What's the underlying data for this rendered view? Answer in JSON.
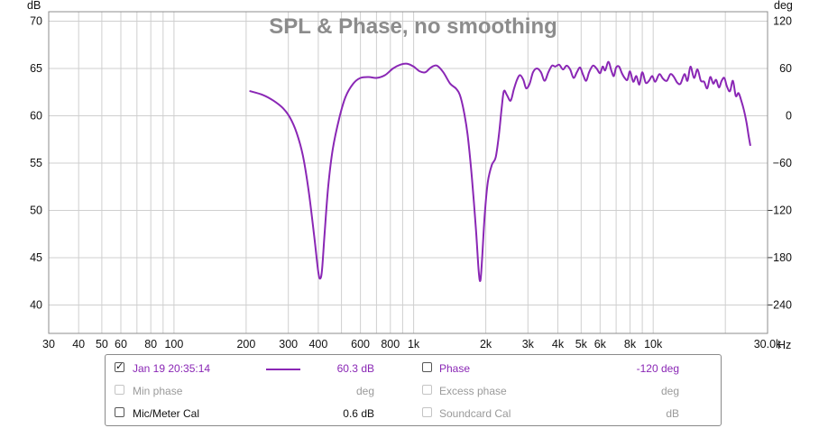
{
  "chart_data": {
    "type": "line",
    "title": "SPL & Phase, no smoothing",
    "y_unit": "dB",
    "y2_unit": "deg",
    "x_unit": "Hz",
    "x_scale": "log",
    "xlim": [
      30,
      30000
    ],
    "ylim": [
      37,
      71
    ],
    "y2lim": [
      -276,
      132
    ],
    "y_ticks": [
      70,
      65,
      60,
      55,
      50,
      45,
      40
    ],
    "y2_ticks": [
      120,
      60,
      0,
      -60,
      -120,
      -180,
      -240
    ],
    "x_tick_labels": [
      {
        "v": 30,
        "t": "30"
      },
      {
        "v": 40,
        "t": "40"
      },
      {
        "v": 50,
        "t": "50"
      },
      {
        "v": 60,
        "t": "60"
      },
      {
        "v": 80,
        "t": "80"
      },
      {
        "v": 100,
        "t": "100"
      },
      {
        "v": 200,
        "t": "200"
      },
      {
        "v": 300,
        "t": "300"
      },
      {
        "v": 400,
        "t": "400"
      },
      {
        "v": 600,
        "t": "600"
      },
      {
        "v": 800,
        "t": "800"
      },
      {
        "v": 1000,
        "t": "1k"
      },
      {
        "v": 2000,
        "t": "2k"
      },
      {
        "v": 3000,
        "t": "3k"
      },
      {
        "v": 4000,
        "t": "4k"
      },
      {
        "v": 5000,
        "t": "5k"
      },
      {
        "v": 6000,
        "t": "6k"
      },
      {
        "v": 8000,
        "t": "8k"
      },
      {
        "v": 10000,
        "t": "10k"
      },
      {
        "v": 30000,
        "t": "30.0k"
      }
    ],
    "grid": true,
    "series": [
      {
        "color": "#8a27b5",
        "points": [
          [
            208,
            62.6
          ],
          [
            235,
            62.2
          ],
          [
            260,
            61.6
          ],
          [
            285,
            60.8
          ],
          [
            305,
            59.8
          ],
          [
            325,
            58.2
          ],
          [
            345,
            55.8
          ],
          [
            365,
            52.0
          ],
          [
            385,
            47.2
          ],
          [
            400,
            43.5
          ],
          [
            408,
            42.8
          ],
          [
            415,
            43.8
          ],
          [
            425,
            47.5
          ],
          [
            440,
            52.5
          ],
          [
            460,
            56.5
          ],
          [
            490,
            59.8
          ],
          [
            520,
            62.0
          ],
          [
            560,
            63.4
          ],
          [
            600,
            64.0
          ],
          [
            650,
            64.1
          ],
          [
            700,
            64.0
          ],
          [
            760,
            64.3
          ],
          [
            820,
            65.0
          ],
          [
            880,
            65.4
          ],
          [
            940,
            65.5
          ],
          [
            1000,
            65.2
          ],
          [
            1060,
            64.7
          ],
          [
            1120,
            64.6
          ],
          [
            1180,
            65.1
          ],
          [
            1250,
            65.3
          ],
          [
            1330,
            64.6
          ],
          [
            1420,
            63.4
          ],
          [
            1500,
            62.9
          ],
          [
            1560,
            62.2
          ],
          [
            1620,
            60.5
          ],
          [
            1680,
            58.0
          ],
          [
            1750,
            53.5
          ],
          [
            1820,
            48.0
          ],
          [
            1870,
            43.5
          ],
          [
            1900,
            42.6
          ],
          [
            1930,
            44.8
          ],
          [
            1980,
            49.5
          ],
          [
            2040,
            53.0
          ],
          [
            2120,
            54.8
          ],
          [
            2200,
            55.6
          ],
          [
            2270,
            58.0
          ],
          [
            2330,
            60.8
          ],
          [
            2380,
            62.6
          ],
          [
            2450,
            62.2
          ],
          [
            2540,
            61.6
          ],
          [
            2620,
            62.8
          ],
          [
            2700,
            63.8
          ],
          [
            2780,
            64.3
          ],
          [
            2870,
            63.8
          ],
          [
            2950,
            62.9
          ],
          [
            3050,
            63.4
          ],
          [
            3150,
            64.6
          ],
          [
            3270,
            65.0
          ],
          [
            3400,
            64.6
          ],
          [
            3520,
            63.7
          ],
          [
            3650,
            64.6
          ],
          [
            3780,
            65.3
          ],
          [
            3900,
            65.2
          ],
          [
            4050,
            65.4
          ],
          [
            4200,
            64.9
          ],
          [
            4350,
            65.3
          ],
          [
            4500,
            64.9
          ],
          [
            4650,
            64.0
          ],
          [
            4800,
            64.6
          ],
          [
            4950,
            65.1
          ],
          [
            5100,
            64.3
          ],
          [
            5250,
            63.7
          ],
          [
            5400,
            64.6
          ],
          [
            5600,
            65.3
          ],
          [
            5800,
            65.0
          ],
          [
            6000,
            64.5
          ],
          [
            6150,
            65.2
          ],
          [
            6300,
            64.8
          ],
          [
            6500,
            65.7
          ],
          [
            6700,
            64.7
          ],
          [
            6850,
            64.2
          ],
          [
            7000,
            65.1
          ],
          [
            7200,
            65.2
          ],
          [
            7400,
            64.5
          ],
          [
            7600,
            64.0
          ],
          [
            7800,
            63.8
          ],
          [
            8000,
            64.7
          ],
          [
            8250,
            63.6
          ],
          [
            8500,
            64.2
          ],
          [
            8750,
            63.3
          ],
          [
            9000,
            64.6
          ],
          [
            9300,
            63.5
          ],
          [
            9600,
            63.7
          ],
          [
            9900,
            64.2
          ],
          [
            10200,
            63.6
          ],
          [
            10600,
            64.4
          ],
          [
            11000,
            63.9
          ],
          [
            11400,
            63.7
          ],
          [
            11800,
            64.4
          ],
          [
            12200,
            64.1
          ],
          [
            12600,
            63.5
          ],
          [
            13000,
            63.4
          ],
          [
            13500,
            64.4
          ],
          [
            13900,
            63.7
          ],
          [
            14300,
            65.2
          ],
          [
            14800,
            64.0
          ],
          [
            15300,
            64.9
          ],
          [
            15800,
            63.7
          ],
          [
            16300,
            63.6
          ],
          [
            16800,
            62.9
          ],
          [
            17300,
            64.1
          ],
          [
            17800,
            63.4
          ],
          [
            18300,
            63.8
          ],
          [
            18800,
            63.0
          ],
          [
            19300,
            63.7
          ],
          [
            19800,
            64.0
          ],
          [
            20300,
            63.1
          ],
          [
            20900,
            62.6
          ],
          [
            21500,
            63.7
          ],
          [
            22100,
            62.1
          ],
          [
            22700,
            62.4
          ],
          [
            23300,
            61.6
          ],
          [
            23900,
            60.6
          ],
          [
            24500,
            59.3
          ],
          [
            25000,
            57.9
          ],
          [
            25400,
            56.9
          ]
        ]
      }
    ]
  },
  "legend": {
    "rows": [
      {
        "checked": true,
        "enabled": true,
        "label": "Jan 19 20:35:14",
        "value": "60.3 dB",
        "right_checked": false,
        "right_label": "Phase",
        "right_value": "-120 deg"
      },
      {
        "checked": false,
        "enabled": false,
        "label": "Min phase",
        "value": "deg",
        "right_checked": false,
        "right_label": "Excess phase",
        "right_value": "deg"
      },
      {
        "checked": false,
        "enabled": true,
        "label": "Mic/Meter Cal",
        "value": "0.6 dB",
        "right_checked": false,
        "right_label": "Soundcard Cal",
        "right_value": "dB"
      }
    ]
  }
}
